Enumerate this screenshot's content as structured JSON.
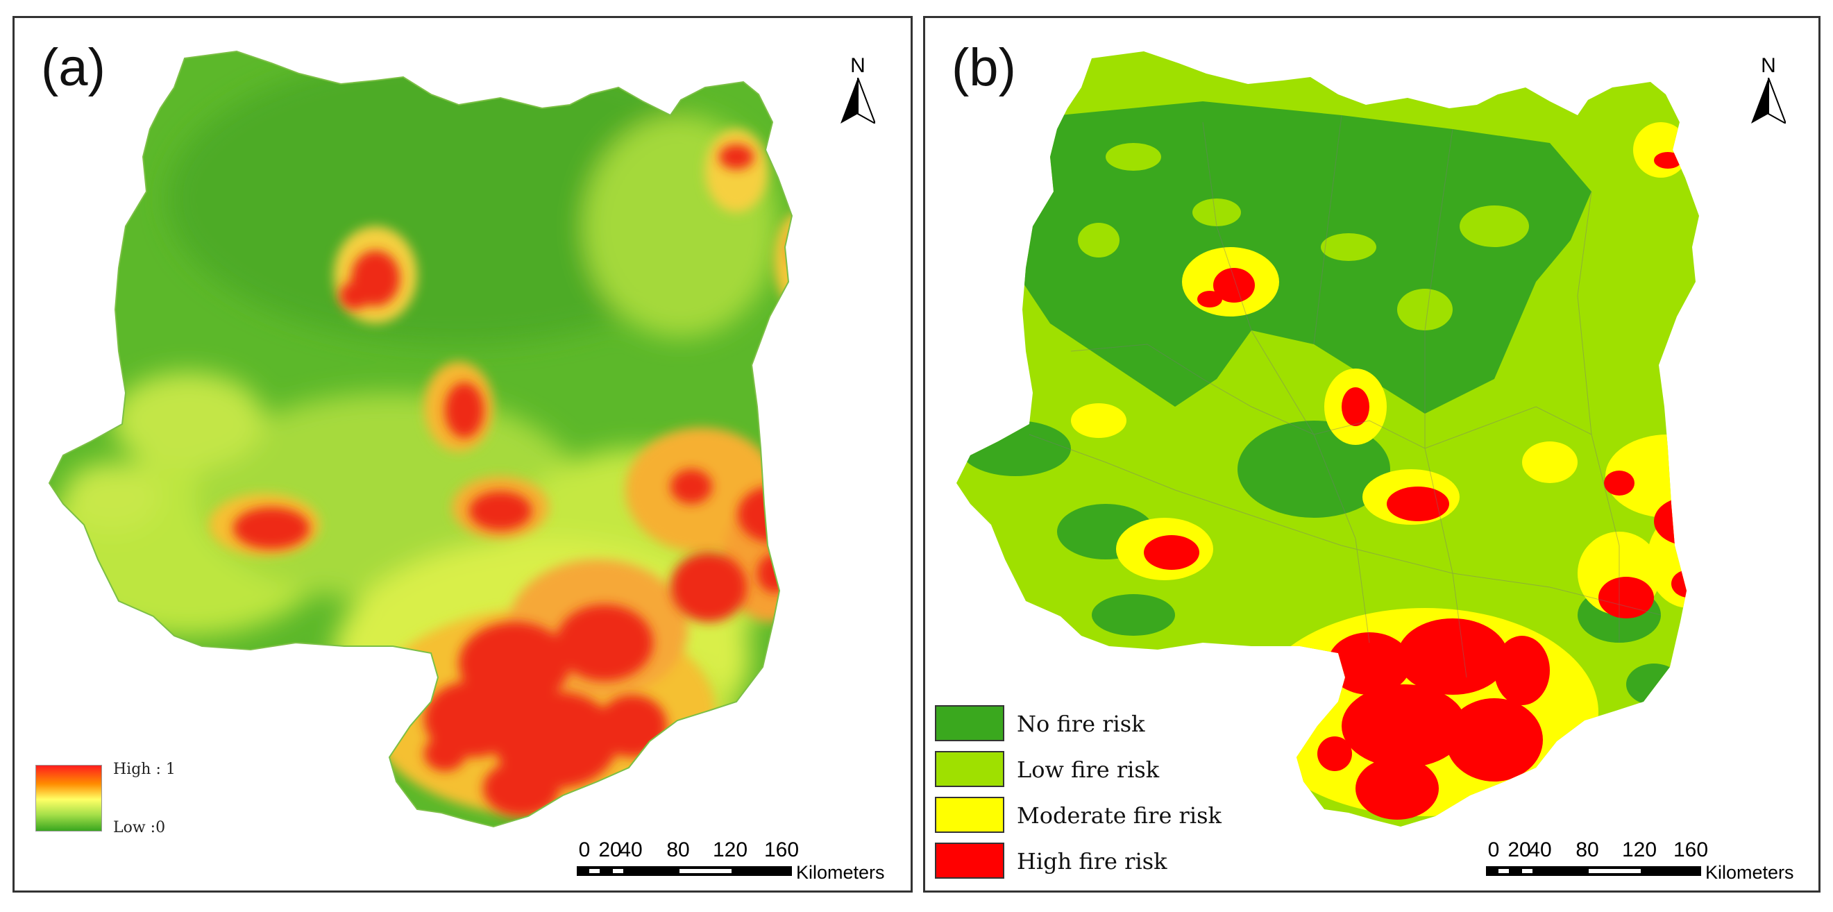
{
  "panels": [
    {
      "label": "(a)"
    },
    {
      "label": "(b)"
    }
  ],
  "north_arrow": {
    "letter": "N",
    "icon": "north-arrow-icon"
  },
  "scale_bar": {
    "ticks": [
      "0",
      "20",
      "40",
      "80",
      "120",
      "160"
    ],
    "units": "Kilometers"
  },
  "panel_a_legend": {
    "high_label": "High : 1",
    "low_label": "Low :0",
    "colors": [
      "#ff1e1e",
      "#ff8c00",
      "#ffff66",
      "#a7e04a",
      "#39a61f"
    ]
  },
  "panel_b_legend": {
    "items": [
      {
        "label": "No fire risk",
        "color": "#3aa81e"
      },
      {
        "label": "Low fire risk",
        "color": "#9fe000"
      },
      {
        "label": "Moderate fire risk",
        "color": "#ffff00"
      },
      {
        "label": "High fire risk",
        "color": "#ff0000"
      }
    ]
  }
}
